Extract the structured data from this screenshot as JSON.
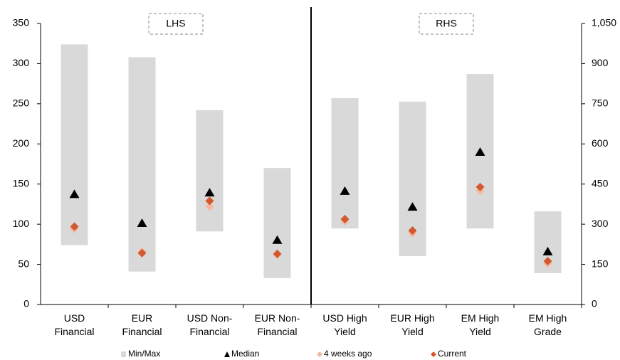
{
  "chart_data": {
    "type": "range",
    "series": [
      {
        "name": "Min/Max",
        "color": "#d9d9d9",
        "marker": "bar"
      },
      {
        "name": "Median",
        "color": "#000000",
        "marker": "triangle"
      },
      {
        "name": "4 weeks ago",
        "color": "#f4b8a0",
        "marker": "diamond"
      },
      {
        "name": "Current",
        "color": "#d4582d",
        "marker": "diamond"
      }
    ],
    "panels": [
      {
        "label": "LHS",
        "axis": "left",
        "categories": [
          "USD\nFinancial",
          "EUR\nFinancial",
          "USD Non-\nFinancial",
          "EUR Non-\nFinancial"
        ],
        "ylim": [
          0,
          350
        ],
        "yticks": [
          0,
          50,
          100,
          150,
          200,
          250,
          300,
          350
        ],
        "series": [
          {
            "low": [
              74,
              41,
              91,
              33
            ],
            "high": [
              324,
              308,
              242,
              170
            ]
          },
          {
            "values": [
              137,
              101,
              139,
              80
            ]
          },
          {
            "values": [
              94,
              66,
              122,
              62
            ]
          },
          {
            "values": [
              97,
              64,
              129,
              63
            ]
          }
        ]
      },
      {
        "label": "RHS",
        "axis": "right",
        "categories": [
          "USD High\nYield",
          "EUR High\nYield",
          "EM High\nYield",
          "EM High\nGrade"
        ],
        "ylim": [
          0,
          1050
        ],
        "yticks": [
          0,
          150,
          300,
          450,
          600,
          750,
          900,
          {
            "value": 1050,
            "label": "1,050"
          }
        ],
        "series": [
          {
            "low": [
              284,
              181,
              284,
              117
            ],
            "high": [
              771,
              758,
              861,
              348
            ]
          },
          {
            "values": [
              423,
              364,
              569,
              197
            ]
          },
          {
            "values": [
              311,
              266,
              425,
              154
            ]
          },
          {
            "values": [
              319,
              276,
              439,
              162
            ]
          }
        ]
      }
    ]
  }
}
